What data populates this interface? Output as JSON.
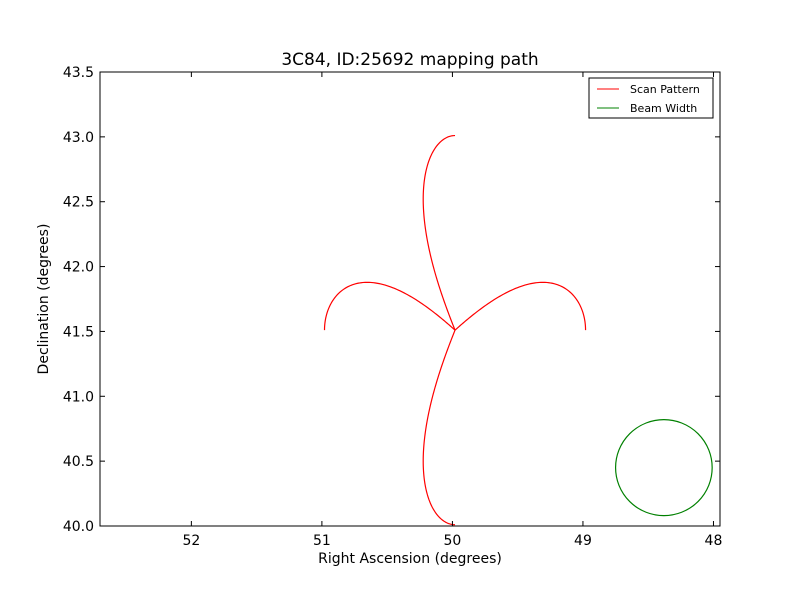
{
  "chart_data": {
    "type": "line",
    "title": "3C84, ID:25692 mapping path",
    "xlabel": "Right Ascension (degrees)",
    "ylabel": "Declination (degrees)",
    "xlim": [
      52.7,
      47.95
    ],
    "ylim": [
      40.0,
      43.5
    ],
    "x_inverted": true,
    "xticks": [
      52,
      51,
      50,
      49,
      48
    ],
    "xtick_labels": [
      "52",
      "51",
      "50",
      "49",
      "48"
    ],
    "yticks": [
      40.0,
      40.5,
      41.0,
      41.5,
      42.0,
      42.5,
      43.0,
      43.5
    ],
    "ytick_labels": [
      "40.0",
      "40.5",
      "41.0",
      "41.5",
      "42.0",
      "42.5",
      "43.0",
      "43.5"
    ],
    "grid": false,
    "legend_position": "top-right",
    "series": [
      {
        "name": "Scan Pattern",
        "color": "#ff0000",
        "shape": "four-petal rose",
        "center": [
          49.98,
          41.51
        ],
        "petal_extent_x": 1.0,
        "petal_extent_y": 1.5,
        "petal_half_width_x": 0.55,
        "petal_half_width_y": 0.42
      },
      {
        "name": "Beam Width",
        "color": "#008000",
        "shape": "circle",
        "center": [
          48.38,
          40.45
        ],
        "radius": 0.37
      }
    ]
  }
}
